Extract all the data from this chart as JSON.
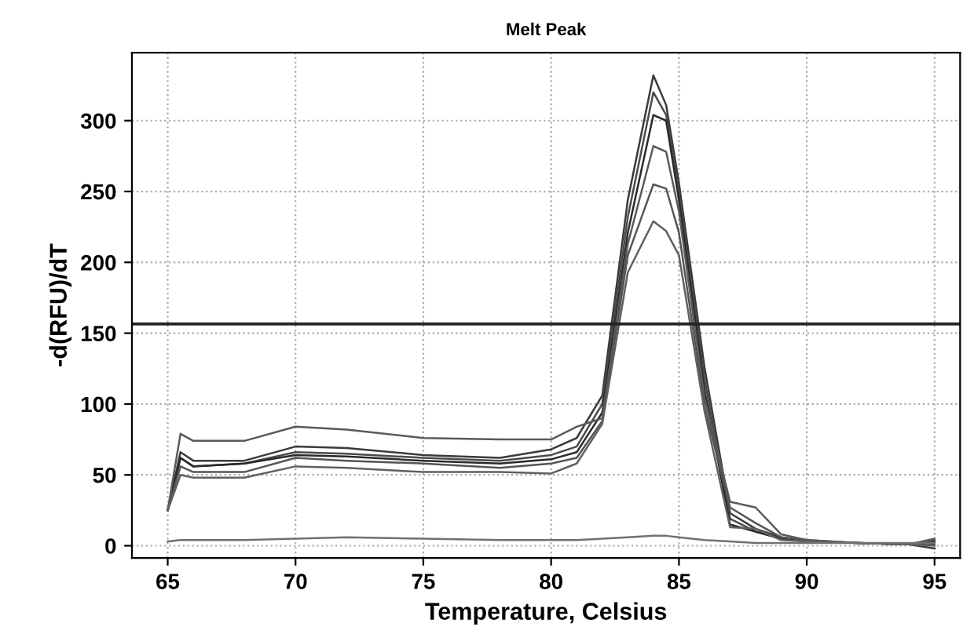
{
  "chart_data": {
    "type": "line",
    "title": "Melt Peak",
    "xlabel": "Temperature, Celsius",
    "ylabel": "-d(RFU)/dT",
    "x": [
      65,
      65.5,
      66,
      68,
      70,
      72,
      75,
      78,
      80,
      81,
      82,
      83,
      84,
      84.5,
      85,
      86,
      87,
      88,
      89,
      90,
      92,
      94,
      95
    ],
    "series": [
      {
        "color": "#3a3a3a",
        "values": [
          25,
          66,
          60,
          60,
          70,
          69,
          64,
          62,
          68,
          76,
          106,
          244,
          332,
          311,
          256,
          126,
          23,
          12,
          6,
          3,
          2,
          1,
          -2
        ]
      },
      {
        "color": "#4a4a4a",
        "values": [
          25,
          62,
          56,
          58,
          66,
          65,
          62,
          60,
          64,
          70,
          100,
          232,
          320,
          304,
          248,
          118,
          19,
          10,
          5,
          3,
          2,
          1,
          1
        ]
      },
      {
        "color": "#2a2a2a",
        "values": [
          25,
          62,
          56,
          58,
          64,
          63,
          60,
          58,
          61,
          66,
          94,
          221,
          304,
          300,
          244,
          110,
          15,
          10,
          5,
          3,
          2,
          1,
          3
        ]
      },
      {
        "color": "#5a5a5a",
        "values": [
          25,
          79,
          74,
          74,
          84,
          82,
          76,
          75,
          75,
          84,
          90,
          213,
          282,
          278,
          236,
          104,
          31,
          27,
          8,
          4,
          2,
          1,
          5
        ]
      },
      {
        "color": "#555555",
        "values": [
          25,
          56,
          52,
          52,
          62,
          60,
          58,
          55,
          58,
          62,
          88,
          205,
          255,
          252,
          221,
          98,
          27,
          16,
          6,
          4,
          2,
          1,
          4
        ]
      },
      {
        "color": "#606060",
        "values": [
          25,
          50,
          48,
          48,
          56,
          55,
          52,
          52,
          51,
          58,
          86,
          193,
          229,
          222,
          205,
          95,
          13,
          12,
          4,
          3,
          2,
          1,
          0
        ]
      },
      {
        "color": "#707070",
        "values": [
          3,
          4,
          4,
          4,
          5,
          6,
          5,
          4,
          4,
          4,
          5,
          6,
          7,
          7,
          6,
          4,
          3,
          2,
          2,
          2,
          2,
          2,
          2
        ]
      }
    ],
    "ref_lines": [
      {
        "axis": "y",
        "value": 156.5,
        "color": "#222222"
      }
    ],
    "xlim": [
      63.6,
      96
    ],
    "ylim": [
      -8.6,
      348
    ],
    "xticks": [
      65,
      70,
      75,
      80,
      85,
      90,
      95
    ],
    "yticks": [
      0,
      50,
      100,
      150,
      200,
      250,
      300
    ],
    "grid": true,
    "marker": "none",
    "line_style": "solid",
    "legend": false
  }
}
